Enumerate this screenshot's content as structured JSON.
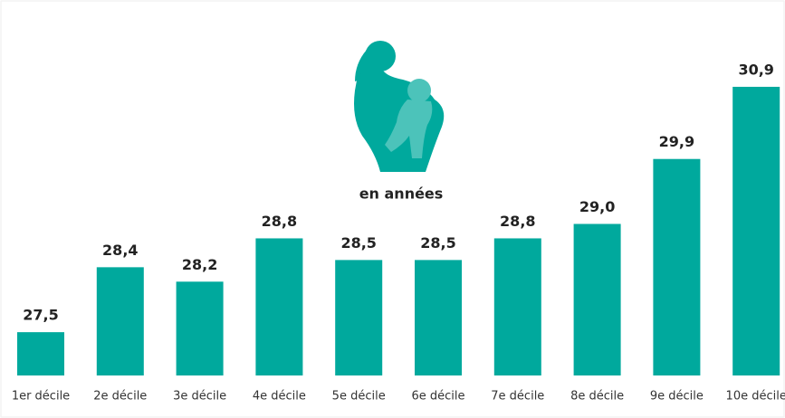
{
  "chart_data": {
    "type": "bar",
    "subtitle": "en années",
    "categories": [
      "1er décile",
      "2e décile",
      "3e décile",
      "4e décile",
      "5e décile",
      "6e décile",
      "7e décile",
      "8e décile",
      "9e décile",
      "10e décile"
    ],
    "values": [
      27.5,
      28.4,
      28.2,
      28.8,
      28.5,
      28.5,
      28.8,
      29.0,
      29.9,
      30.9
    ],
    "value_labels": [
      "27,5",
      "28,4",
      "28,2",
      "28,8",
      "28,5",
      "28,5",
      "28,8",
      "29,0",
      "29,9",
      "30,9"
    ],
    "color": "#00a99d",
    "ylim": [
      26.9,
      31.1
    ]
  }
}
